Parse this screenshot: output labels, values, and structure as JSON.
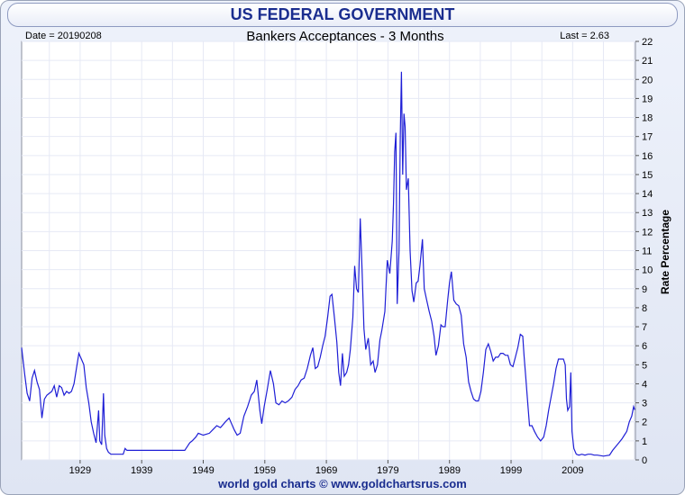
{
  "header": {
    "title": "US FEDERAL GOVERNMENT",
    "date_label": "Date = 20190208",
    "subtitle": "Bankers Acceptances - 3 Months",
    "last_label": "Last = 2.63"
  },
  "footer": {
    "text": "world gold charts © www.goldchartsrus.com"
  },
  "colors": {
    "line": "#1f1fd6",
    "grid": "#e6e9f5",
    "title": "#1a2d8f"
  },
  "chart_data": {
    "type": "line",
    "title": "Bankers Acceptances - 3 Months",
    "ylabel": "Rate Percentage",
    "xlabel": "",
    "ylim": [
      0,
      22
    ],
    "xlim": [
      1919.5,
      2019.2
    ],
    "x_ticks": [
      "1929",
      "1939",
      "1949",
      "1959",
      "1969",
      "1979",
      "1989",
      "1999",
      "2009"
    ],
    "y_ticks": [
      0,
      1,
      2,
      3,
      4,
      5,
      6,
      7,
      8,
      9,
      10,
      11,
      12,
      13,
      14,
      15,
      16,
      17,
      18,
      19,
      20,
      21,
      22
    ],
    "grid": true,
    "series": [
      {
        "values": [
          [
            1919.5,
            5.9
          ],
          [
            1920.0,
            4.5
          ],
          [
            1920.4,
            3.5
          ],
          [
            1920.8,
            3.1
          ],
          [
            1921.2,
            4.3
          ],
          [
            1921.6,
            4.7
          ],
          [
            1922.0,
            4.1
          ],
          [
            1922.4,
            3.7
          ],
          [
            1922.8,
            2.2
          ],
          [
            1923.2,
            3.2
          ],
          [
            1923.6,
            3.4
          ],
          [
            1924.0,
            3.5
          ],
          [
            1924.4,
            3.6
          ],
          [
            1924.8,
            3.9
          ],
          [
            1925.2,
            3.3
          ],
          [
            1925.6,
            3.9
          ],
          [
            1926.0,
            3.8
          ],
          [
            1926.4,
            3.4
          ],
          [
            1926.8,
            3.6
          ],
          [
            1927.2,
            3.5
          ],
          [
            1927.6,
            3.6
          ],
          [
            1928.0,
            4.0
          ],
          [
            1928.4,
            4.8
          ],
          [
            1928.8,
            5.6
          ],
          [
            1929.2,
            5.3
          ],
          [
            1929.6,
            5.0
          ],
          [
            1930.0,
            3.8
          ],
          [
            1930.4,
            3.0
          ],
          [
            1930.8,
            2.0
          ],
          [
            1931.2,
            1.4
          ],
          [
            1931.6,
            0.9
          ],
          [
            1932.0,
            2.6
          ],
          [
            1932.2,
            1.0
          ],
          [
            1932.5,
            0.8
          ],
          [
            1932.8,
            3.5
          ],
          [
            1933.0,
            1.3
          ],
          [
            1933.3,
            0.6
          ],
          [
            1933.6,
            0.4
          ],
          [
            1934.0,
            0.3
          ],
          [
            1934.5,
            0.3
          ],
          [
            1935.0,
            0.3
          ],
          [
            1935.5,
            0.3
          ],
          [
            1936.0,
            0.3
          ],
          [
            1936.3,
            0.6
          ],
          [
            1936.6,
            0.5
          ],
          [
            1940.0,
            0.5
          ],
          [
            1942.0,
            0.5
          ],
          [
            1945.0,
            0.5
          ],
          [
            1946.0,
            0.5
          ],
          [
            1946.8,
            0.9
          ],
          [
            1947.2,
            1.0
          ],
          [
            1947.8,
            1.2
          ],
          [
            1948.2,
            1.4
          ],
          [
            1949.0,
            1.3
          ],
          [
            1950.0,
            1.4
          ],
          [
            1950.6,
            1.6
          ],
          [
            1951.2,
            1.8
          ],
          [
            1951.8,
            1.7
          ],
          [
            1952.6,
            2.0
          ],
          [
            1953.2,
            2.2
          ],
          [
            1954.0,
            1.6
          ],
          [
            1954.5,
            1.3
          ],
          [
            1955.0,
            1.4
          ],
          [
            1955.6,
            2.3
          ],
          [
            1956.2,
            2.8
          ],
          [
            1956.8,
            3.4
          ],
          [
            1957.3,
            3.6
          ],
          [
            1957.7,
            4.2
          ],
          [
            1958.2,
            2.6
          ],
          [
            1958.5,
            1.9
          ],
          [
            1958.9,
            2.8
          ],
          [
            1959.4,
            3.7
          ],
          [
            1959.9,
            4.7
          ],
          [
            1960.4,
            4.0
          ],
          [
            1960.8,
            3.0
          ],
          [
            1961.3,
            2.9
          ],
          [
            1961.8,
            3.1
          ],
          [
            1962.3,
            3.0
          ],
          [
            1962.8,
            3.1
          ],
          [
            1963.4,
            3.3
          ],
          [
            1963.9,
            3.7
          ],
          [
            1964.4,
            3.9
          ],
          [
            1964.9,
            4.2
          ],
          [
            1965.4,
            4.3
          ],
          [
            1965.9,
            4.8
          ],
          [
            1966.4,
            5.5
          ],
          [
            1966.8,
            5.9
          ],
          [
            1967.2,
            4.8
          ],
          [
            1967.6,
            4.9
          ],
          [
            1968.0,
            5.4
          ],
          [
            1968.4,
            6.0
          ],
          [
            1968.8,
            6.5
          ],
          [
            1969.2,
            7.5
          ],
          [
            1969.6,
            8.6
          ],
          [
            1969.9,
            8.7
          ],
          [
            1970.3,
            7.5
          ],
          [
            1970.7,
            6.2
          ],
          [
            1971.0,
            4.6
          ],
          [
            1971.3,
            3.9
          ],
          [
            1971.6,
            5.6
          ],
          [
            1971.9,
            4.4
          ],
          [
            1972.3,
            4.6
          ],
          [
            1972.6,
            5.0
          ],
          [
            1972.9,
            5.8
          ],
          [
            1973.3,
            7.5
          ],
          [
            1973.6,
            10.2
          ],
          [
            1973.9,
            9.0
          ],
          [
            1974.2,
            8.8
          ],
          [
            1974.5,
            12.7
          ],
          [
            1974.8,
            10.0
          ],
          [
            1975.1,
            6.9
          ],
          [
            1975.4,
            5.8
          ],
          [
            1975.8,
            6.4
          ],
          [
            1976.2,
            5.0
          ],
          [
            1976.6,
            5.2
          ],
          [
            1976.9,
            4.6
          ],
          [
            1977.3,
            5.0
          ],
          [
            1977.7,
            6.3
          ],
          [
            1978.0,
            6.8
          ],
          [
            1978.5,
            7.8
          ],
          [
            1978.9,
            10.5
          ],
          [
            1979.3,
            9.8
          ],
          [
            1979.7,
            11.5
          ],
          [
            1979.9,
            13.5
          ],
          [
            1980.1,
            16.2
          ],
          [
            1980.3,
            17.2
          ],
          [
            1980.5,
            8.2
          ],
          [
            1980.8,
            11.0
          ],
          [
            1981.0,
            17.0
          ],
          [
            1981.2,
            20.4
          ],
          [
            1981.4,
            15.0
          ],
          [
            1981.6,
            18.2
          ],
          [
            1981.8,
            17.5
          ],
          [
            1982.0,
            14.2
          ],
          [
            1982.3,
            14.8
          ],
          [
            1982.6,
            11.0
          ],
          [
            1982.9,
            8.9
          ],
          [
            1983.2,
            8.3
          ],
          [
            1983.6,
            9.3
          ],
          [
            1983.9,
            9.4
          ],
          [
            1984.2,
            10.2
          ],
          [
            1984.6,
            11.6
          ],
          [
            1984.9,
            9.0
          ],
          [
            1985.3,
            8.4
          ],
          [
            1985.7,
            7.8
          ],
          [
            1986.1,
            7.3
          ],
          [
            1986.5,
            6.5
          ],
          [
            1986.8,
            5.5
          ],
          [
            1987.2,
            6.0
          ],
          [
            1987.6,
            7.1
          ],
          [
            1987.9,
            7.0
          ],
          [
            1988.3,
            7.0
          ],
          [
            1988.7,
            8.4
          ],
          [
            1989.0,
            9.3
          ],
          [
            1989.3,
            9.9
          ],
          [
            1989.7,
            8.4
          ],
          [
            1990.1,
            8.2
          ],
          [
            1990.5,
            8.1
          ],
          [
            1990.9,
            7.6
          ],
          [
            1991.3,
            6.1
          ],
          [
            1991.7,
            5.4
          ],
          [
            1992.1,
            4.1
          ],
          [
            1992.5,
            3.6
          ],
          [
            1992.9,
            3.2
          ],
          [
            1993.3,
            3.1
          ],
          [
            1993.7,
            3.1
          ],
          [
            1994.1,
            3.6
          ],
          [
            1994.5,
            4.6
          ],
          [
            1994.9,
            5.8
          ],
          [
            1995.3,
            6.1
          ],
          [
            1995.7,
            5.7
          ],
          [
            1996.1,
            5.2
          ],
          [
            1996.5,
            5.4
          ],
          [
            1996.9,
            5.4
          ],
          [
            1997.3,
            5.6
          ],
          [
            1997.7,
            5.6
          ],
          [
            1998.1,
            5.5
          ],
          [
            1998.5,
            5.5
          ],
          [
            1998.9,
            5.0
          ],
          [
            1999.3,
            4.9
          ],
          [
            1999.7,
            5.4
          ],
          [
            2000.1,
            5.9
          ],
          [
            2000.5,
            6.6
          ],
          [
            2000.9,
            6.5
          ],
          [
            2001.1,
            5.5
          ],
          [
            2001.4,
            4.3
          ],
          [
            2001.7,
            3.0
          ],
          [
            2002.0,
            1.8
          ],
          [
            2002.4,
            1.8
          ],
          [
            2002.8,
            1.5
          ],
          [
            2003.3,
            1.2
          ],
          [
            2003.8,
            1.0
          ],
          [
            2004.3,
            1.2
          ],
          [
            2004.7,
            1.8
          ],
          [
            2005.1,
            2.6
          ],
          [
            2005.5,
            3.3
          ],
          [
            2005.9,
            4.0
          ],
          [
            2006.3,
            4.8
          ],
          [
            2006.7,
            5.3
          ],
          [
            2007.1,
            5.3
          ],
          [
            2007.5,
            5.3
          ],
          [
            2007.8,
            5.0
          ],
          [
            2008.0,
            3.2
          ],
          [
            2008.2,
            2.6
          ],
          [
            2008.5,
            2.8
          ],
          [
            2008.7,
            4.6
          ],
          [
            2008.9,
            1.5
          ],
          [
            2009.2,
            0.6
          ],
          [
            2009.6,
            0.3
          ],
          [
            2010.0,
            0.25
          ],
          [
            2010.5,
            0.3
          ],
          [
            2011.0,
            0.25
          ],
          [
            2011.5,
            0.3
          ],
          [
            2012.0,
            0.3
          ],
          [
            2012.5,
            0.25
          ],
          [
            2013.0,
            0.25
          ],
          [
            2014.0,
            0.2
          ],
          [
            2015.0,
            0.25
          ],
          [
            2015.5,
            0.5
          ],
          [
            2016.0,
            0.7
          ],
          [
            2016.5,
            0.9
          ],
          [
            2017.0,
            1.1
          ],
          [
            2017.4,
            1.3
          ],
          [
            2017.8,
            1.5
          ],
          [
            2018.2,
            2.0
          ],
          [
            2018.6,
            2.3
          ],
          [
            2018.9,
            2.8
          ],
          [
            2019.1,
            2.63
          ]
        ]
      }
    ]
  }
}
